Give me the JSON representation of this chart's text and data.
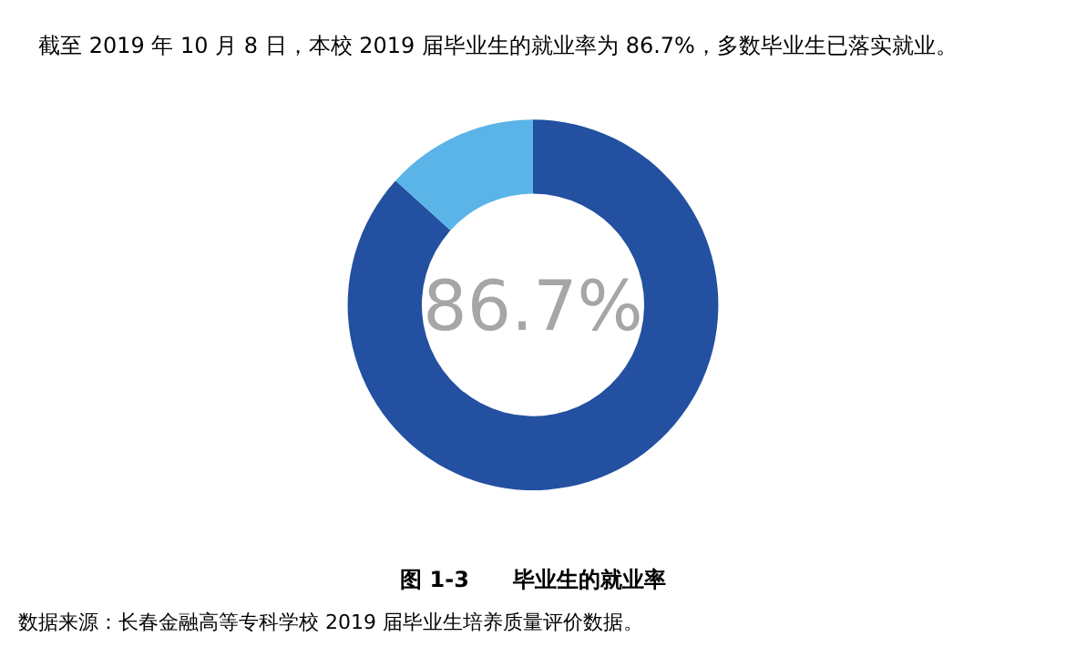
{
  "chart_data": {
    "type": "donut",
    "title": "截至 2019 年 10 月 8 日，本校 2019 届毕业生的就业率为 86.7%，多数毕业生已落实就业。",
    "categories": [
      null,
      null
    ],
    "values": [
      86.7,
      13.3
    ],
    "colors": [
      "#2350a0",
      "#5bb4e8"
    ],
    "annotations": [
      "86.7%",
      "图 1-3　　毕业生的就业率",
      "数据来源：长春金融高等专科学校 2019 届毕业生培养质量评价数据。"
    ]
  }
}
